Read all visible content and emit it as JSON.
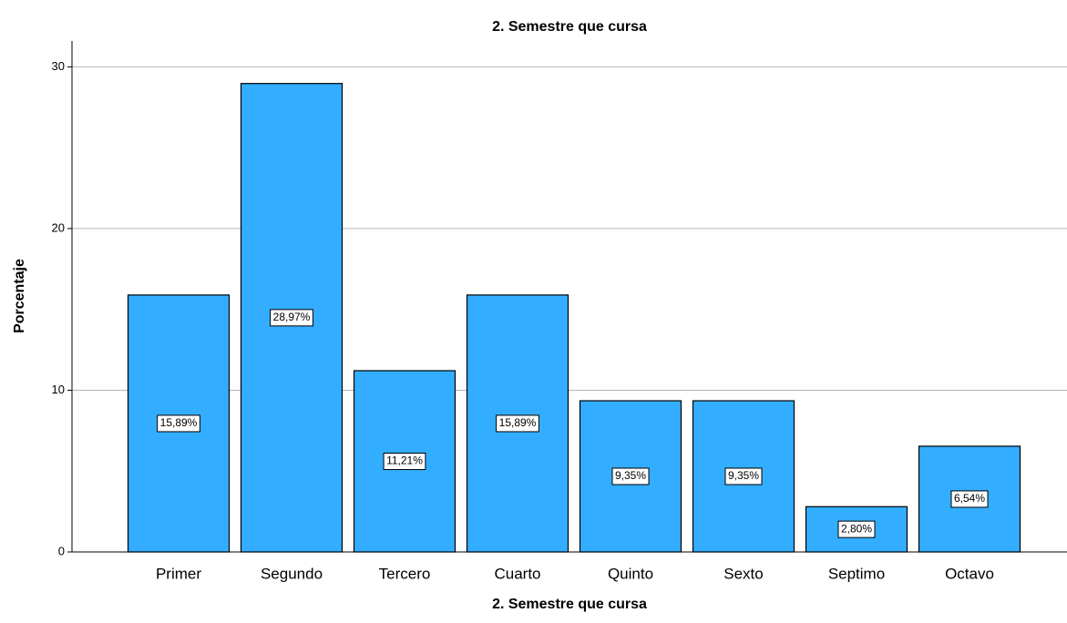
{
  "chart_data": {
    "type": "bar",
    "title": "2. Semestre que cursa",
    "x_label": "2. Semestre que cursa",
    "y_label": "Porcentaje",
    "categories": [
      "Primer",
      "Segundo",
      "Tercero",
      "Cuarto",
      "Quinto",
      "Sexto",
      "Septimo",
      "Octavo"
    ],
    "values": [
      15.89,
      28.97,
      11.21,
      15.89,
      9.35,
      9.35,
      2.8,
      6.54
    ],
    "value_labels": [
      "15,89%",
      "28,97%",
      "11,21%",
      "15,89%",
      "9,35%",
      "9,35%",
      "2,80%",
      "6,54%"
    ],
    "color": "#33adff",
    "ylim": [
      0,
      31.6
    ],
    "yticks": [
      0,
      10,
      20,
      30
    ],
    "grid": true
  }
}
